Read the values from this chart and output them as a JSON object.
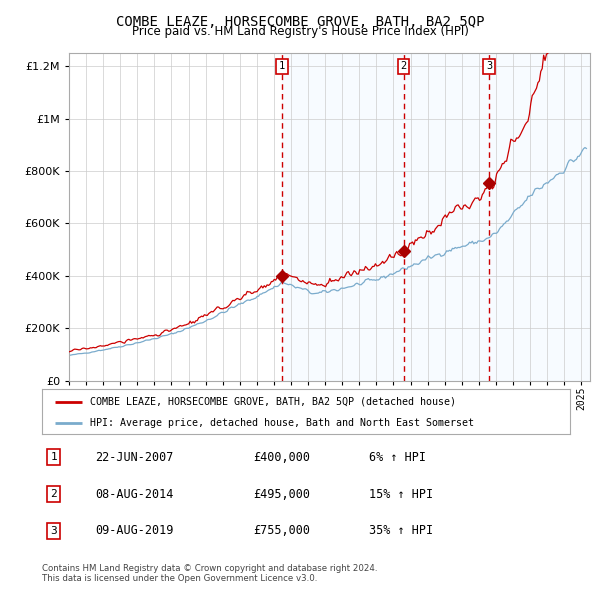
{
  "title": "COMBE LEAZE, HORSECOMBE GROVE, BATH, BA2 5QP",
  "subtitle": "Price paid vs. HM Land Registry's House Price Index (HPI)",
  "legend_red": "COMBE LEAZE, HORSECOMBE GROVE, BATH, BA2 5QP (detached house)",
  "legend_blue": "HPI: Average price, detached house, Bath and North East Somerset",
  "transactions": [
    {
      "num": 1,
      "date": "22-JUN-2007",
      "price": 400000,
      "pct": "6%",
      "dir": "↑"
    },
    {
      "num": 2,
      "date": "08-AUG-2014",
      "price": 495000,
      "pct": "15%",
      "dir": "↑"
    },
    {
      "num": 3,
      "date": "09-AUG-2019",
      "price": 755000,
      "pct": "35%",
      "dir": "↑"
    }
  ],
  "transaction_dates_decimal": [
    2007.47,
    2014.6,
    2019.6
  ],
  "ylim": [
    0,
    1250000
  ],
  "yticks": [
    0,
    200000,
    400000,
    600000,
    800000,
    1000000,
    1200000
  ],
  "xstart": 1995.0,
  "xend": 2025.5,
  "red_color": "#cc0000",
  "blue_color": "#7aabcc",
  "blue_fill_color": "#ddeeff",
  "grid_color": "#cccccc",
  "dashed_line_color": "#cc0000",
  "marker_color": "#aa0000",
  "footnote": "Contains HM Land Registry data © Crown copyright and database right 2024.\nThis data is licensed under the Open Government Licence v3.0."
}
